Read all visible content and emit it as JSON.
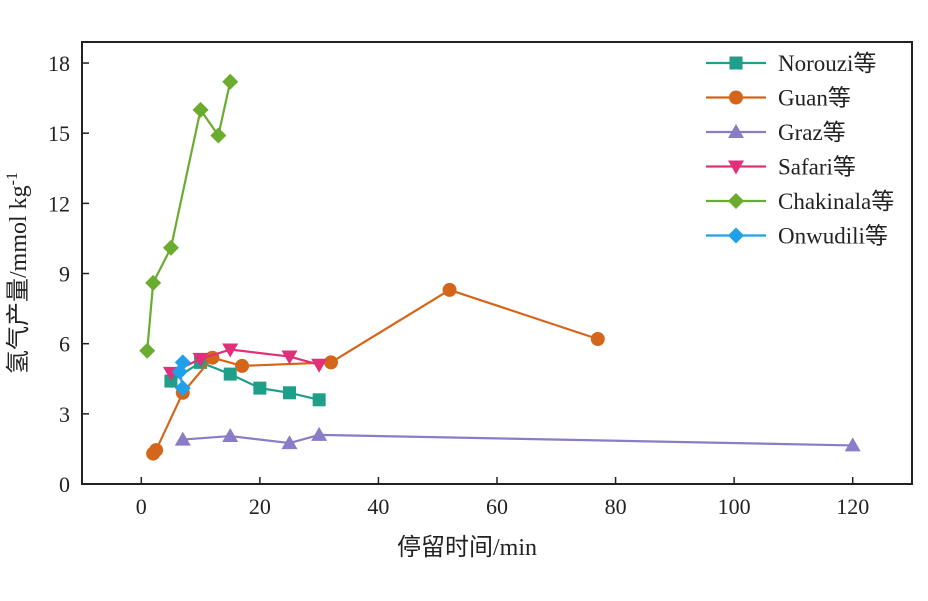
{
  "chart_data": {
    "type": "line",
    "title": "",
    "xlabel": "停留时间/min",
    "ylabel": "氢气产量/mmol kg",
    "ylabel_sup": "-1",
    "xlim": [
      -10,
      130
    ],
    "ylim": [
      0,
      18.9
    ],
    "xticks": [
      0,
      20,
      40,
      60,
      80,
      100,
      120
    ],
    "yticks": [
      0,
      3,
      6,
      9,
      12,
      15,
      18
    ],
    "grid": false,
    "legend_position": "top-right",
    "series": [
      {
        "name": "Norouzi等",
        "color": "#1f9e89",
        "marker": "square",
        "x": [
          5,
          10,
          15,
          20,
          25,
          30
        ],
        "y": [
          4.4,
          5.2,
          4.7,
          4.1,
          3.9,
          3.6
        ]
      },
      {
        "name": "Guan等",
        "color": "#d4661b",
        "marker": "circle",
        "x": [
          2,
          2.5,
          7,
          12,
          17,
          32,
          52,
          77
        ],
        "y": [
          1.3,
          1.45,
          3.9,
          5.4,
          5.05,
          5.2,
          8.3,
          6.2
        ]
      },
      {
        "name": "Graz等",
        "color": "#8a7cc6",
        "marker": "triangle-up",
        "x": [
          7,
          15,
          25,
          30,
          120
        ],
        "y": [
          1.9,
          2.05,
          1.75,
          2.1,
          1.65
        ]
      },
      {
        "name": "Safari等",
        "color": "#e0307a",
        "marker": "triangle-down",
        "x": [
          5,
          10,
          15,
          25,
          30
        ],
        "y": [
          4.75,
          5.35,
          5.75,
          5.45,
          5.1
        ]
      },
      {
        "name": "Chakinala等",
        "color": "#6aad2e",
        "marker": "diamond",
        "x": [
          1,
          2,
          5,
          10,
          13,
          15
        ],
        "y": [
          5.7,
          8.6,
          10.1,
          16.0,
          14.9,
          17.2
        ]
      },
      {
        "name": "Onwudili等",
        "color": "#1fa0e8",
        "marker": "diamond",
        "x": [
          7,
          6.5,
          7
        ],
        "y": [
          5.2,
          4.8,
          4.1
        ]
      }
    ]
  }
}
